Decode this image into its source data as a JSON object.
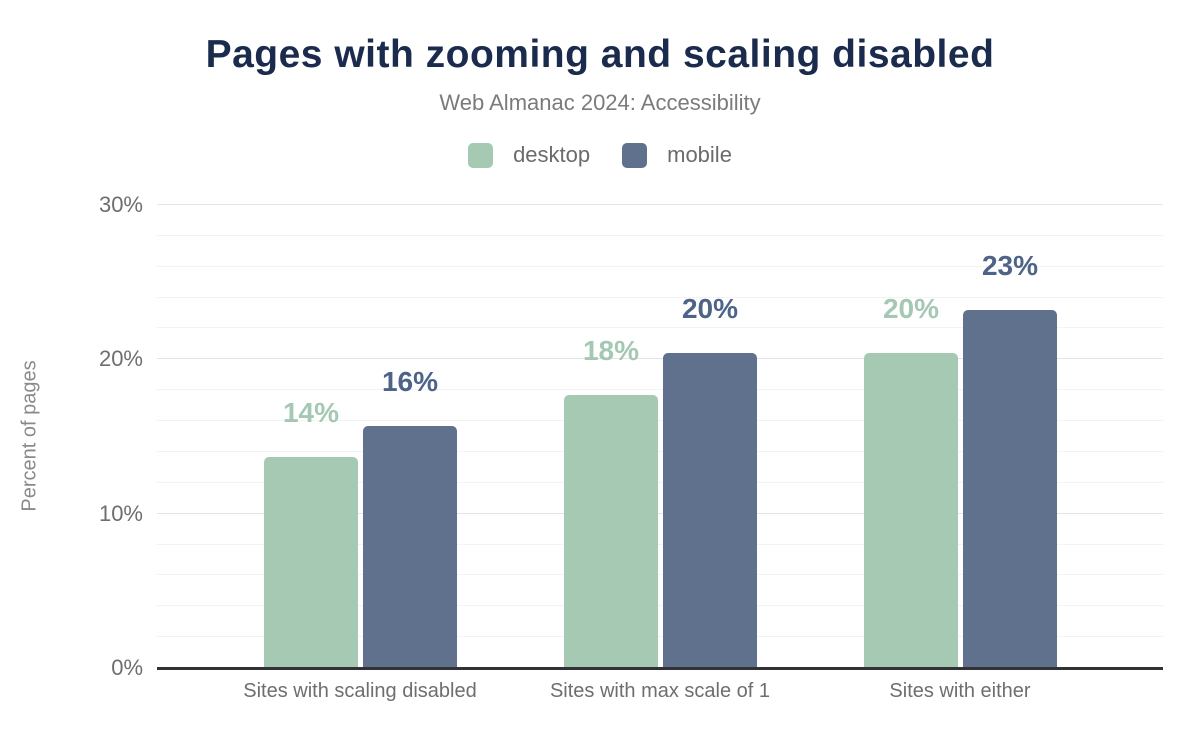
{
  "header": {
    "title": "Pages with zooming and scaling disabled",
    "title_color": "#1b2b4d",
    "subtitle": "Web Almanac 2024: Accessibility"
  },
  "legend": {
    "items": [
      {
        "label": "desktop",
        "color": "#a6c9b4"
      },
      {
        "label": "mobile",
        "color": "#5f718d"
      }
    ]
  },
  "chart_data": {
    "type": "bar",
    "title": "Pages with zooming and scaling disabled",
    "subtitle": "Web Almanac 2024: Accessibility",
    "categories": [
      "Sites with scaling disabled",
      "Sites with max scale of 1",
      "Sites with either"
    ],
    "series": [
      {
        "name": "desktop",
        "values": [
          13.7,
          17.7,
          20.4
        ],
        "display_labels": [
          "14%",
          "18%",
          "20%"
        ],
        "color": "#a6c9b4",
        "label_color": "#a4c8b3"
      },
      {
        "name": "mobile",
        "values": [
          15.7,
          20.4,
          23.2
        ],
        "display_labels": [
          "16%",
          "20%",
          "23%"
        ],
        "color": "#5f718d",
        "label_color": "#4d6388"
      }
    ],
    "xlabel": "",
    "ylabel": "Percent of pages",
    "ylim": [
      0,
      30
    ],
    "y_ticks": [
      {
        "value": 0,
        "label": "0%"
      },
      {
        "value": 10,
        "label": "10%"
      },
      {
        "value": 20,
        "label": "20%"
      },
      {
        "value": 30,
        "label": "30%"
      }
    ],
    "y_major_step": 10,
    "y_minor_step": 2,
    "grid": true,
    "legend_position": "top"
  }
}
